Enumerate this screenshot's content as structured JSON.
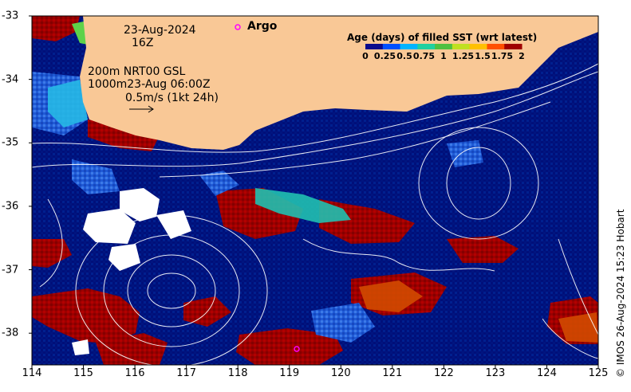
{
  "map": {
    "region": "Great Australian Bight / SW Australia",
    "land_color": "#f9c896",
    "ocean_base_color": "#001a8c"
  },
  "header": {
    "date": "23-Aug-2024",
    "time": "16Z",
    "line1": "200m  NRT00 GSL",
    "line2": "1000m23-Aug 06:00Z",
    "line3": "0.5m/s (1kt 24h)"
  },
  "argo": {
    "label": "Argo",
    "marker_color": "#ff00ff"
  },
  "legend": {
    "title": "Age (days) of filled SST (wrt latest)",
    "ticks": [
      "0",
      "0.25",
      "0.5",
      "0.75",
      "1",
      "1.25",
      "1.5",
      "1.75",
      "2"
    ],
    "colors": [
      "#0a0a8c",
      "#0050ff",
      "#00b4ff",
      "#20d0a0",
      "#50c040",
      "#c0e020",
      "#ffc000",
      "#ff5000",
      "#a00000"
    ]
  },
  "axes": {
    "x_ticks": [
      "114",
      "115",
      "116",
      "117",
      "118",
      "119",
      "120",
      "121",
      "122",
      "123",
      "124",
      "125"
    ],
    "y_ticks": [
      "-33",
      "-34",
      "-35",
      "-36",
      "-37",
      "-38"
    ],
    "x_range": [
      114,
      125
    ],
    "y_range": [
      -38.5,
      -33
    ]
  },
  "credit": "© IMOS 26-Aug-2024 15:23 Hobart"
}
